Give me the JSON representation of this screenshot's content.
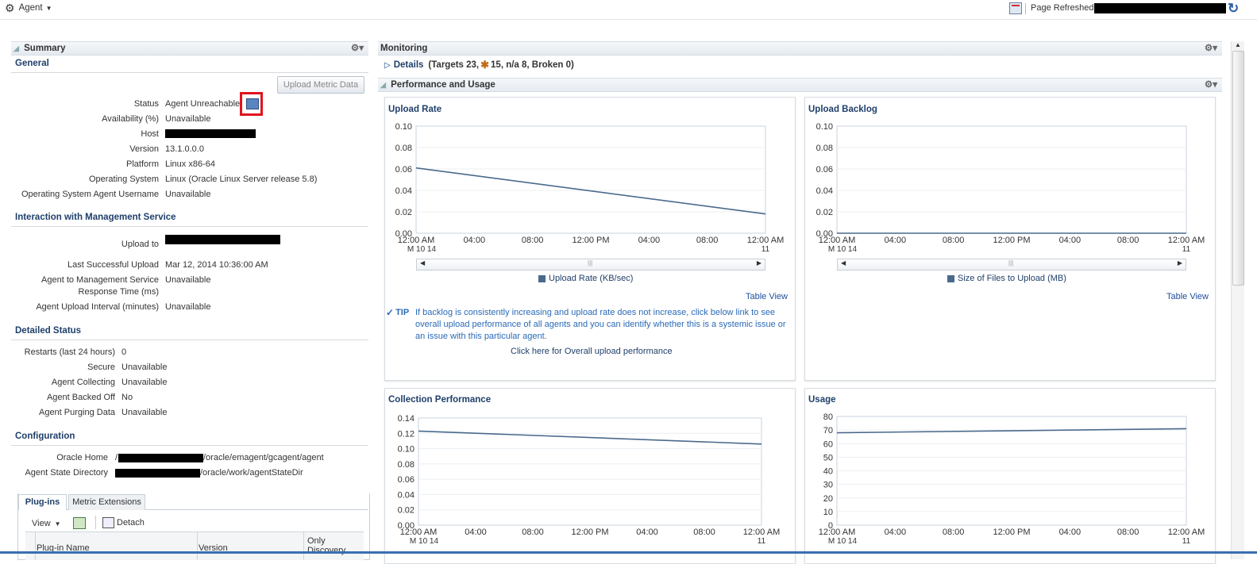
{
  "topbar": {
    "agent_menu": "Agent",
    "refreshed_label": "Page Refreshed"
  },
  "summary": {
    "header": "Summary",
    "general_title": "General",
    "upload_metric_button": "Upload Metric Data",
    "general_rows": [
      {
        "label": "Status",
        "value": "Agent Unreachable"
      },
      {
        "label": "Availability (%)",
        "value": "Unavailable"
      },
      {
        "label": "Host",
        "value": ""
      },
      {
        "label": "Version",
        "value": "13.1.0.0.0"
      },
      {
        "label": "Platform",
        "value": "Linux x86-64"
      },
      {
        "label": "Operating System",
        "value": "Linux (Oracle Linux Server release 5.8)"
      },
      {
        "label": "Operating System Agent Username",
        "value": "Unavailable"
      }
    ],
    "interaction_title": "Interaction with Management Service",
    "interaction_rows": [
      {
        "label": "Upload to",
        "value": ""
      },
      {
        "label": "Last Successful Upload",
        "value": "Mar 12, 2014 10:36:00 AM"
      },
      {
        "label": "Agent to Management Service",
        "label2": "Response Time (ms)",
        "value": "Unavailable"
      },
      {
        "label": "Agent Upload Interval (minutes)",
        "value": "Unavailable"
      }
    ],
    "detailed_title": "Detailed Status",
    "detailed_rows": [
      {
        "label": "Restarts (last 24 hours)",
        "value": "0"
      },
      {
        "label": "Secure",
        "value": "Unavailable"
      },
      {
        "label": "Agent Collecting",
        "value": "Unavailable"
      },
      {
        "label": "Agent Backed Off",
        "value": "No"
      },
      {
        "label": "Agent Purging Data",
        "value": "Unavailable"
      }
    ],
    "config_title": "Configuration",
    "config_rows": [
      {
        "label": "Oracle Home",
        "value_prefix": "/",
        "value": "/oracle/emagent/gcagent/agent"
      },
      {
        "label": "Agent State Directory",
        "value_prefix": "",
        "value": "/oracle/work/agentStateDir"
      }
    ],
    "tabs": [
      "Plug-ins",
      "Metric Extensions"
    ],
    "toolbar": {
      "view": "View",
      "detach": "Detach"
    },
    "columns": [
      "Plug-in Name",
      "Version",
      "Only Discovery"
    ]
  },
  "monitoring": {
    "header": "Monitoring",
    "details_label": "Details",
    "details_prefix": "(Targets 23,",
    "details_suffix": "15, n/a 8, Broken 0)",
    "perf_header": "Performance and Usage"
  },
  "cards": {
    "upload_rate": {
      "title": "Upload Rate",
      "legend": "Upload Rate (KB/sec)",
      "table_view": "Table View"
    },
    "upload_backlog": {
      "title": "Upload Backlog",
      "legend": "Size of Files to Upload (MB)",
      "table_view": "Table View"
    },
    "collection": {
      "title": "Collection Performance"
    },
    "usage": {
      "title": "Usage"
    },
    "tip": {
      "label": "TIP",
      "text": "If backlog is consistently increasing and upload rate does not increase, click below link to see overall upload performance of all agents and you can identify whether this is a systemic issue or an issue with this particular agent.",
      "link": "Click here for Overall upload performance"
    }
  },
  "x_ticks": [
    "12:00 AM",
    "04:00",
    "08:00",
    "12:00 PM",
    "04:00",
    "08:00",
    "12:00 AM"
  ],
  "x_tick_sub_first": "M 10 14",
  "x_tick_sub_last": "11",
  "chart_data": [
    {
      "type": "line",
      "title": "Upload Rate",
      "y_ticks": [
        "0.10",
        "0.08",
        "0.06",
        "0.04",
        "0.02",
        "0.00"
      ],
      "ylim": [
        0,
        0.1
      ],
      "series": [
        {
          "name": "Upload Rate (KB/sec)",
          "x": [
            0,
            1
          ],
          "values": [
            0.061,
            0.018
          ]
        }
      ],
      "color": "#4a6a8c"
    },
    {
      "type": "line",
      "title": "Upload Backlog",
      "y_ticks": [
        "0.10",
        "0.08",
        "0.06",
        "0.04",
        "0.02",
        "0.00"
      ],
      "ylim": [
        0,
        0.1
      ],
      "series": [
        {
          "name": "Size of Files to Upload (MB)",
          "x": [
            0,
            1
          ],
          "values": [
            0,
            0
          ]
        }
      ],
      "color": "#4a6a8c"
    },
    {
      "type": "line",
      "title": "Collection Performance",
      "y_ticks": [
        "0.14",
        "0.12",
        "0.10",
        "0.08",
        "0.06",
        "0.04",
        "0.02",
        "0.00"
      ],
      "ylim": [
        0,
        0.14
      ],
      "series": [
        {
          "x": [
            0,
            1
          ],
          "values": [
            0.123,
            0.106
          ]
        }
      ],
      "color": "#4a6a8c"
    },
    {
      "type": "line",
      "title": "Usage",
      "y_ticks": [
        "80",
        "70",
        "60",
        "50",
        "40",
        "30",
        "20",
        "10",
        "0"
      ],
      "ylim": [
        0,
        80
      ],
      "series": [
        {
          "x": [
            0,
            1
          ],
          "values": [
            68,
            71
          ]
        }
      ],
      "color": "#4a6a8c"
    }
  ]
}
